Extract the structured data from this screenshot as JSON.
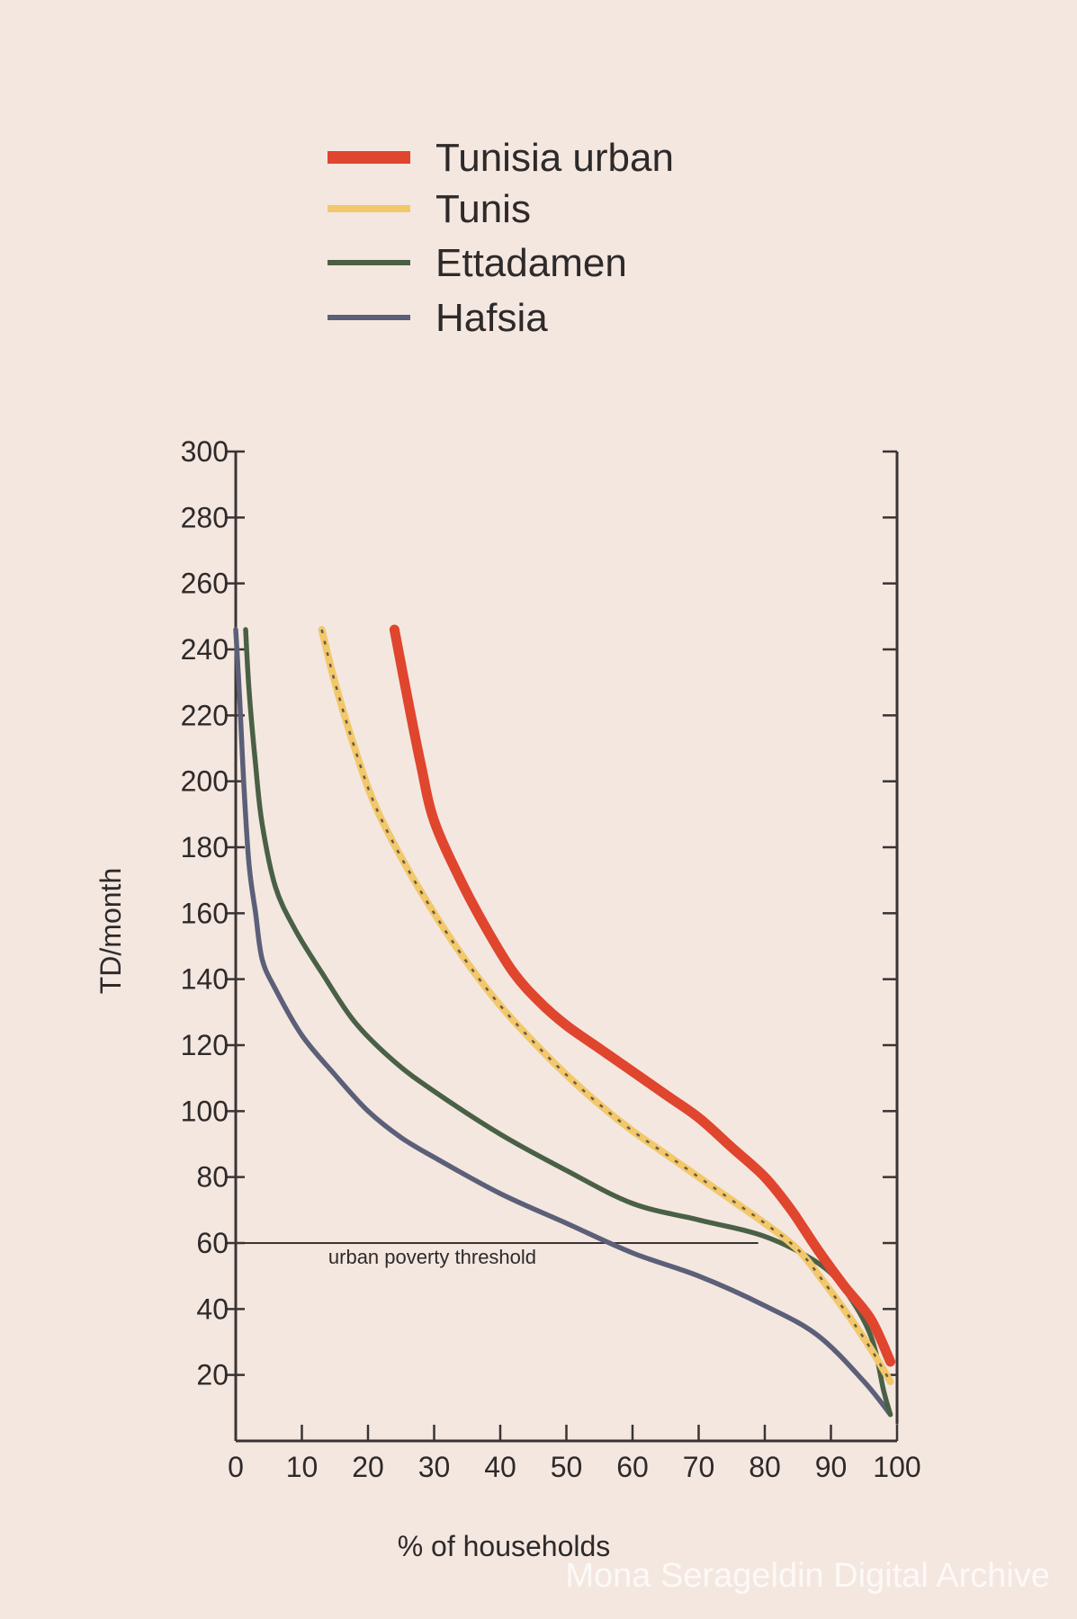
{
  "chart_data": {
    "type": "line",
    "title": "",
    "xlabel": "% of households",
    "ylabel": "TD/month",
    "xlim": [
      0,
      100
    ],
    "ylim": [
      0,
      300
    ],
    "x_ticks": [
      0,
      10,
      20,
      30,
      40,
      50,
      60,
      70,
      80,
      90,
      100
    ],
    "y_ticks": [
      20,
      40,
      60,
      80,
      100,
      120,
      140,
      160,
      180,
      200,
      220,
      240,
      260,
      280,
      300
    ],
    "legend_position": "top",
    "grid": false,
    "series": [
      {
        "name": "Tunisia urban",
        "color": "#e0452e",
        "style": "thick",
        "points": [
          [
            24,
            246
          ],
          [
            26,
            225
          ],
          [
            28,
            205
          ],
          [
            30,
            188
          ],
          [
            34,
            170
          ],
          [
            38,
            155
          ],
          [
            42,
            142
          ],
          [
            46,
            133
          ],
          [
            50,
            126
          ],
          [
            55,
            119
          ],
          [
            60,
            112
          ],
          [
            65,
            105
          ],
          [
            70,
            98
          ],
          [
            75,
            89
          ],
          [
            80,
            80
          ],
          [
            84,
            70
          ],
          [
            88,
            58
          ],
          [
            92,
            47
          ],
          [
            96,
            37
          ],
          [
            99,
            24
          ]
        ]
      },
      {
        "name": "Tunis",
        "color": "#f2c86a",
        "style": "dashed",
        "points": [
          [
            13,
            246
          ],
          [
            15,
            230
          ],
          [
            18,
            210
          ],
          [
            21,
            193
          ],
          [
            25,
            177
          ],
          [
            30,
            160
          ],
          [
            35,
            145
          ],
          [
            40,
            132
          ],
          [
            45,
            121
          ],
          [
            50,
            111
          ],
          [
            55,
            102
          ],
          [
            60,
            94
          ],
          [
            65,
            87
          ],
          [
            70,
            80
          ],
          [
            75,
            73
          ],
          [
            80,
            66
          ],
          [
            85,
            58
          ],
          [
            89,
            48
          ],
          [
            93,
            37
          ],
          [
            96,
            28
          ],
          [
            99,
            18
          ]
        ]
      },
      {
        "name": "Ettadamen",
        "color": "#4a6045",
        "style": "solid",
        "points": [
          [
            1.5,
            246
          ],
          [
            2,
            228
          ],
          [
            3,
            205
          ],
          [
            4,
            187
          ],
          [
            6,
            168
          ],
          [
            9,
            155
          ],
          [
            13,
            142
          ],
          [
            18,
            127
          ],
          [
            24,
            115
          ],
          [
            30,
            106
          ],
          [
            40,
            93
          ],
          [
            50,
            82
          ],
          [
            60,
            72
          ],
          [
            70,
            67
          ],
          [
            80,
            62
          ],
          [
            88,
            54
          ],
          [
            92,
            46
          ],
          [
            96,
            32
          ],
          [
            98,
            15
          ],
          [
            99,
            8
          ]
        ]
      },
      {
        "name": "Hafsia",
        "color": "#5c5f78",
        "style": "solid",
        "points": [
          [
            0,
            246
          ],
          [
            0.6,
            225
          ],
          [
            1.2,
            200
          ],
          [
            2,
            175
          ],
          [
            3,
            160
          ],
          [
            4,
            146
          ],
          [
            6,
            137
          ],
          [
            10,
            123
          ],
          [
            15,
            111
          ],
          [
            20,
            100
          ],
          [
            25,
            92
          ],
          [
            30,
            86
          ],
          [
            40,
            75
          ],
          [
            50,
            66
          ],
          [
            60,
            57
          ],
          [
            70,
            50
          ],
          [
            80,
            41
          ],
          [
            88,
            32
          ],
          [
            95,
            18
          ],
          [
            99,
            8
          ]
        ]
      }
    ],
    "annotations": [
      {
        "text": "urban poverty threshold",
        "y": 60
      }
    ]
  },
  "watermark": "Mona Serageldin Digital Archive"
}
